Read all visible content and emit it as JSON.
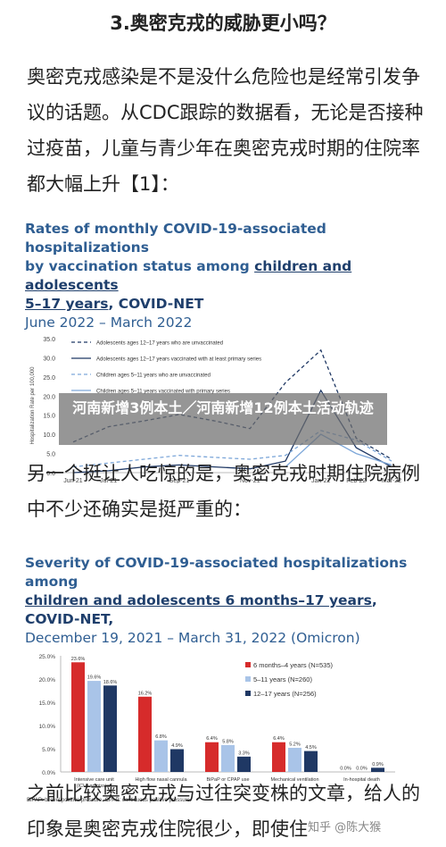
{
  "article": {
    "heading": "3.奥密克戎的威胁更小吗？",
    "para1": "奥密克戎感染是不是没什么危险也是经常引发争议的话题。从CDC跟踪的数据看，无论是否接种过疫苗，儿童与青少年在奥密克戎时期的住院率都大幅上升【1】：",
    "para2": "另一个挺让人吃惊的是，奥密克戎时期住院病例中不少还确实是挺严重的：",
    "para3": "之前比较奥密克戎与过往突变株的文章，给人的印象是奥密克戎住院很少，即使住"
  },
  "overlay_caption": "河南新增3例本土／河南新增12例本土活动轨迹",
  "watermark": "知乎 @陈大猴",
  "chart_data": [
    {
      "type": "line",
      "title_line1": "Rates of monthly COVID-19-associated hospitalizations",
      "title_line2_plain": "by vaccination status among ",
      "title_line2_u": "children and adolescents",
      "title_line3_u": "5–17 years",
      "title_line3_plain": ", COVID-NET",
      "subtitle": "June 2022 – March 2022",
      "ylabel": "Hospitalization Rate per 100,000",
      "ylim": [
        0,
        35
      ],
      "yticks": [
        "0.0",
        "5.0",
        "10.0",
        "15.0",
        "20.0",
        "25.0",
        "30.0",
        "35.0"
      ],
      "x": [
        "Jun-21",
        "Jul-21",
        "Aug-21",
        "Sep-21",
        "Oct-21",
        "Nov-21",
        "Dec-21",
        "Jan-22",
        "Feb-22",
        "Mar-22"
      ],
      "xtick_labels": [
        "Jun-21",
        "Jul-21",
        "Sep-21",
        "Nov-21",
        "Jan-22",
        "Feb-22",
        "Mar-22"
      ],
      "xtick_index": [
        0,
        1,
        3,
        5,
        7,
        8,
        9
      ],
      "series": [
        {
          "name": "Adolescents ages 12–17 years who are unvaccinated",
          "color": "#1f3864",
          "dash": "4,3",
          "values": [
            8.0,
            12.0,
            13.5,
            15.2,
            13.5,
            11.5,
            23.5,
            32.0,
            9.0,
            3.5
          ]
        },
        {
          "name": "Adolescents ages 12–17 years vaccinated with at least primary series",
          "color": "#1f3864",
          "dash": "",
          "values": [
            0.0,
            0.5,
            1.5,
            2.0,
            1.5,
            1.0,
            3.0,
            21.5,
            6.5,
            1.5
          ]
        },
        {
          "name": "Children ages 5–11 years who are unvaccinated",
          "color": "#7da7d9",
          "dash": "4,3",
          "values": [
            1.5,
            2.5,
            3.5,
            4.5,
            4.0,
            3.5,
            4.5,
            11.0,
            8.5,
            3.0
          ]
        },
        {
          "name": "Children ages 5–11 years vaccinated with primary series",
          "color": "#7da7d9",
          "dash": "",
          "values": [
            null,
            null,
            null,
            null,
            null,
            null,
            1.5,
            10.0,
            5.0,
            2.0
          ]
        }
      ]
    },
    {
      "type": "bar",
      "title_line1": "Severity of COVID-19-associated hospitalizations among",
      "title_line2_u": "children and adolescents 6 months–17 years",
      "title_line2_plain": ", COVID-NET,",
      "subtitle": "December 19, 2021 – March 31, 2022 (Omicron)",
      "ylim": [
        0,
        25
      ],
      "yticks": [
        "0.0%",
        "5.0%",
        "10.0%",
        "15.0%",
        "20.0%",
        "25.0%"
      ],
      "categories": [
        "Intensive care unit (ICU) admission",
        "High flow nasal cannula",
        "BiPaP or CPAP use",
        "Mechanical ventilation",
        "In-hospital death"
      ],
      "series": [
        {
          "name": "6 months–4 years (N=535)",
          "color": "#d62b2b",
          "values": [
            23.6,
            16.2,
            6.4,
            6.4,
            0.0
          ],
          "labels": [
            "23.6%",
            "16.2%",
            "6.4%",
            "6.4%",
            "0.0%"
          ]
        },
        {
          "name": "5–11 years (N=260)",
          "color": "#a9c4e8",
          "values": [
            19.6,
            6.8,
            5.8,
            5.2,
            0.0
          ],
          "labels": [
            "19.6%",
            "6.8%",
            "5.8%",
            "5.2%",
            "0.0%"
          ]
        },
        {
          "name": "12–17 years (N=256)",
          "color": "#1f3864",
          "values": [
            18.6,
            4.9,
            3.3,
            4.5,
            0.9
          ],
          "labels": [
            "18.6%",
            "4.9%",
            "3.3%",
            "4.5%",
            "0.9%"
          ]
        }
      ],
      "footnote": "BiPAP: bilevel positive pressure, CPAP: continuous positive pressure."
    }
  ]
}
